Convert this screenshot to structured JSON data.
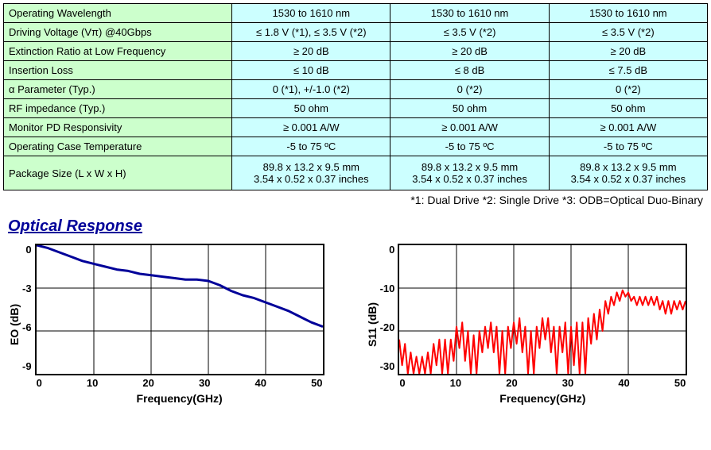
{
  "table": {
    "label_bg": "#ccffcc",
    "value_bg": "#ccffff",
    "border_color": "#000000",
    "rows": [
      {
        "label": "Operating Wavelength",
        "v1": "1530 to 1610 nm",
        "v2": "1530 to 1610 nm",
        "v3": "1530 to 1610 nm"
      },
      {
        "label": "Driving Voltage (Vπ) @40Gbps",
        "v1": "≤ 1.8 V (*1), ≤ 3.5 V (*2)",
        "v2": "≤ 3.5 V (*2)",
        "v3": "≤ 3.5 V (*2)"
      },
      {
        "label": "Extinction Ratio at Low Frequency",
        "v1": "≥ 20 dB",
        "v2": "≥ 20 dB",
        "v3": "≥ 20 dB"
      },
      {
        "label": "Insertion Loss",
        "v1": "≤ 10 dB",
        "v2": "≤ 8 dB",
        "v3": "≤ 7.5 dB"
      },
      {
        "label": "α  Parameter (Typ.)",
        "v1": "0 (*1), +/-1.0 (*2)",
        "v2": "0 (*2)",
        "v3": "0 (*2)"
      },
      {
        "label": "RF impedance (Typ.)",
        "v1": "50 ohm",
        "v2": "50 ohm",
        "v3": "50 ohm"
      },
      {
        "label": "Monitor PD Responsivity",
        "v1": "≥ 0.001 A/W",
        "v2": "≥ 0.001 A/W",
        "v3": "≥ 0.001 A/W"
      },
      {
        "label": "Operating Case Temperature",
        "v1": "-5 to 75 ºC",
        "v2": "-5 to 75 ºC",
        "v3": "-5 to 75 ºC"
      }
    ],
    "tall_row": {
      "label": "Package Size (L x W x H)",
      "v1a": "89.8 x 13.2 x 9.5 mm",
      "v1b": "3.54 x 0.52 x 0.37 inches",
      "v2a": "89.8 x 13.2 x 9.5 mm",
      "v2b": "3.54 x 0.52 x 0.37 inches",
      "v3a": "89.8 x 13.2 x 9.5 mm",
      "v3b": "3.54 x 0.52 x 0.37 inches"
    }
  },
  "footnote": "*1: Dual Drive     *2: Single Drive     *3: ODB=Optical Duo-Binary",
  "section_title": "Optical Response",
  "chart1": {
    "type": "line",
    "ylabel": "EO (dB)",
    "xlabel": "Frequency(GHz)",
    "line_color": "#000099",
    "line_width": 3,
    "grid_color": "#000000",
    "xlim": [
      0,
      50
    ],
    "ylim": [
      -9,
      0
    ],
    "xticks": [
      "0",
      "10",
      "20",
      "30",
      "40",
      "50"
    ],
    "yticks": [
      "0",
      "-3",
      "-6",
      "-9"
    ],
    "points": [
      [
        0,
        0
      ],
      [
        2,
        -0.2
      ],
      [
        4,
        -0.5
      ],
      [
        6,
        -0.8
      ],
      [
        8,
        -1.1
      ],
      [
        10,
        -1.3
      ],
      [
        12,
        -1.5
      ],
      [
        14,
        -1.7
      ],
      [
        16,
        -1.8
      ],
      [
        18,
        -2.0
      ],
      [
        20,
        -2.1
      ],
      [
        22,
        -2.2
      ],
      [
        24,
        -2.3
      ],
      [
        26,
        -2.4
      ],
      [
        28,
        -2.4
      ],
      [
        30,
        -2.5
      ],
      [
        32,
        -2.8
      ],
      [
        34,
        -3.2
      ],
      [
        36,
        -3.5
      ],
      [
        38,
        -3.7
      ],
      [
        40,
        -4.0
      ],
      [
        42,
        -4.3
      ],
      [
        44,
        -4.6
      ],
      [
        46,
        -5.0
      ],
      [
        48,
        -5.4
      ],
      [
        50,
        -5.7
      ]
    ]
  },
  "chart2": {
    "type": "line",
    "ylabel": "S11 (dB)",
    "xlabel": "Frequency(GHz)",
    "line_color": "#ff0000",
    "line_width": 2,
    "grid_color": "#000000",
    "xlim": [
      0,
      50
    ],
    "ylim": [
      -30,
      0
    ],
    "xticks": [
      "0",
      "10",
      "20",
      "30",
      "40",
      "50"
    ],
    "yticks": [
      "0",
      "-10",
      "-20",
      "-30"
    ],
    "points": [
      [
        0,
        -22
      ],
      [
        0.5,
        -28
      ],
      [
        1,
        -23
      ],
      [
        1.5,
        -30
      ],
      [
        2,
        -25
      ],
      [
        2.5,
        -30
      ],
      [
        3,
        -26
      ],
      [
        3.5,
        -30
      ],
      [
        4,
        -26
      ],
      [
        4.5,
        -30
      ],
      [
        5,
        -25
      ],
      [
        5.5,
        -30
      ],
      [
        6,
        -23
      ],
      [
        6.5,
        -28
      ],
      [
        7,
        -22
      ],
      [
        7.5,
        -30
      ],
      [
        8,
        -22
      ],
      [
        8.5,
        -30
      ],
      [
        9,
        -22
      ],
      [
        9.5,
        -27
      ],
      [
        10,
        -19
      ],
      [
        10.5,
        -24
      ],
      [
        11,
        -18
      ],
      [
        11.5,
        -27
      ],
      [
        12,
        -20
      ],
      [
        12.5,
        -30
      ],
      [
        13,
        -21
      ],
      [
        13.5,
        -30
      ],
      [
        14,
        -20
      ],
      [
        14.5,
        -25
      ],
      [
        15,
        -19
      ],
      [
        15.5,
        -24
      ],
      [
        16,
        -18
      ],
      [
        16.5,
        -25
      ],
      [
        17,
        -19
      ],
      [
        17.5,
        -30
      ],
      [
        18,
        -20
      ],
      [
        18.5,
        -30
      ],
      [
        19,
        -19
      ],
      [
        19.5,
        -24
      ],
      [
        20,
        -18
      ],
      [
        20.5,
        -23
      ],
      [
        21,
        -17
      ],
      [
        21.5,
        -25
      ],
      [
        22,
        -19
      ],
      [
        22.5,
        -30
      ],
      [
        23,
        -20
      ],
      [
        23.5,
        -30
      ],
      [
        24,
        -19
      ],
      [
        24.5,
        -24
      ],
      [
        25,
        -17
      ],
      [
        25.5,
        -22
      ],
      [
        26,
        -17
      ],
      [
        26.5,
        -25
      ],
      [
        27,
        -19
      ],
      [
        27.5,
        -30
      ],
      [
        28,
        -19
      ],
      [
        28.5,
        -25
      ],
      [
        29,
        -18
      ],
      [
        29.5,
        -30
      ],
      [
        30,
        -19
      ],
      [
        30.5,
        -28
      ],
      [
        31,
        -18
      ],
      [
        31.5,
        -30
      ],
      [
        32,
        -18
      ],
      [
        32.5,
        -30
      ],
      [
        33,
        -17
      ],
      [
        33.5,
        -23
      ],
      [
        34,
        -16
      ],
      [
        34.5,
        -22
      ],
      [
        35,
        -15
      ],
      [
        35.5,
        -20
      ],
      [
        36,
        -13
      ],
      [
        36.5,
        -16
      ],
      [
        37,
        -12
      ],
      [
        37.5,
        -14
      ],
      [
        38,
        -11
      ],
      [
        38.5,
        -13
      ],
      [
        39,
        -10.5
      ],
      [
        39.5,
        -12
      ],
      [
        40,
        -11
      ],
      [
        40.5,
        -13
      ],
      [
        41,
        -12
      ],
      [
        41.5,
        -14
      ],
      [
        42,
        -12
      ],
      [
        42.5,
        -14
      ],
      [
        43,
        -12
      ],
      [
        43.5,
        -14
      ],
      [
        44,
        -12
      ],
      [
        44.5,
        -14
      ],
      [
        45,
        -12
      ],
      [
        45.5,
        -15
      ],
      [
        46,
        -13
      ],
      [
        46.5,
        -16
      ],
      [
        47,
        -13
      ],
      [
        47.5,
        -16
      ],
      [
        48,
        -13
      ],
      [
        48.5,
        -15
      ],
      [
        49,
        -13
      ],
      [
        49.5,
        -15
      ],
      [
        50,
        -13
      ]
    ]
  }
}
